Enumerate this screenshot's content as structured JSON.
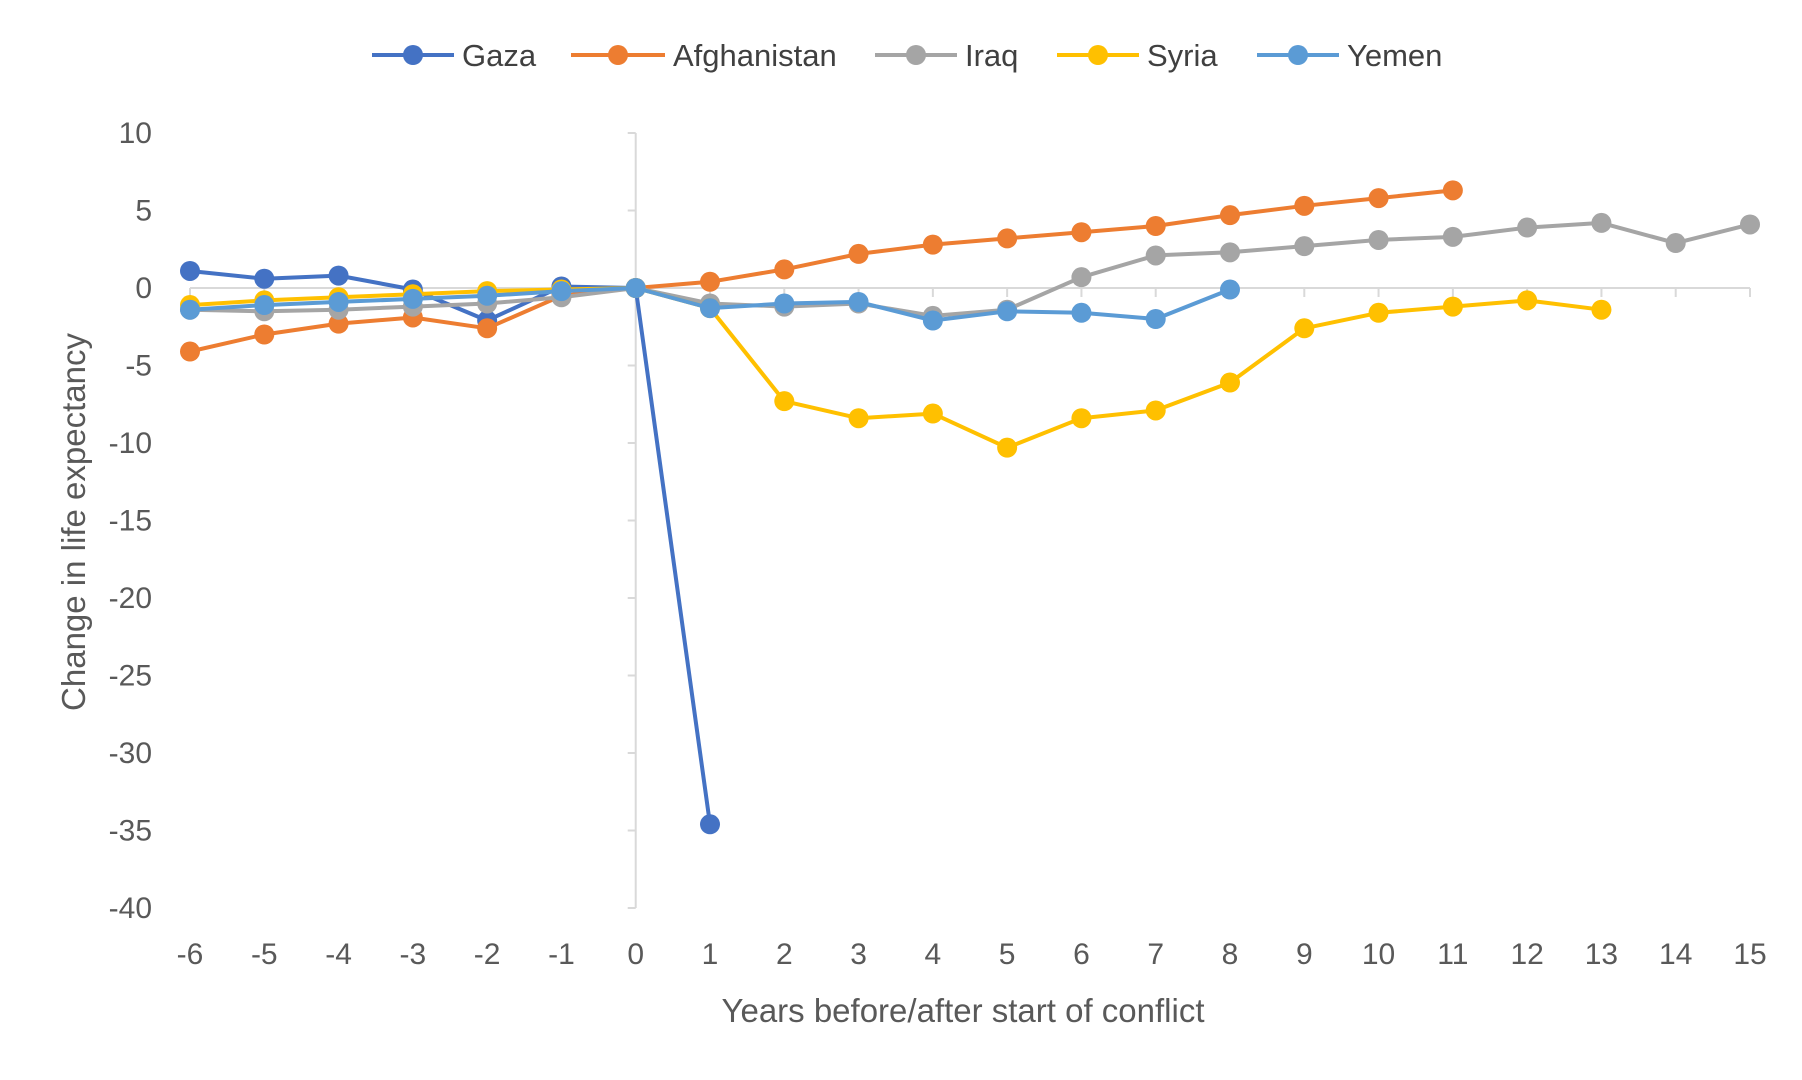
{
  "chart_data": {
    "type": "line",
    "title": "",
    "xlabel": "Years before/after start of conflict",
    "ylabel": "Change in life expectancy",
    "x": [
      -6,
      -5,
      -4,
      -3,
      -2,
      -1,
      0,
      1,
      2,
      3,
      4,
      5,
      6,
      7,
      8,
      9,
      10,
      11,
      12,
      13,
      14,
      15
    ],
    "xlim": [
      -6,
      15
    ],
    "ylim": [
      -40,
      10
    ],
    "yticks": [
      10,
      5,
      0,
      -5,
      -10,
      -15,
      -20,
      -25,
      -30,
      -35,
      -40
    ],
    "grid": false,
    "legend_position": "top",
    "series": [
      {
        "name": "Gaza",
        "color": "#4472C4",
        "points": [
          [
            -6,
            1.1
          ],
          [
            -5,
            0.6
          ],
          [
            -4,
            0.8
          ],
          [
            -3,
            -0.1
          ],
          [
            -2,
            -2.1
          ],
          [
            -1,
            0.1
          ],
          [
            0,
            0
          ],
          [
            1,
            -34.6
          ]
        ]
      },
      {
        "name": "Afghanistan",
        "color": "#ED7D31",
        "points": [
          [
            -6,
            -4.1
          ],
          [
            -5,
            -3.0
          ],
          [
            -4,
            -2.3
          ],
          [
            -3,
            -1.9
          ],
          [
            -2,
            -2.6
          ],
          [
            -1,
            -0.5
          ],
          [
            0,
            0
          ],
          [
            1,
            0.4
          ],
          [
            2,
            1.2
          ],
          [
            3,
            2.2
          ],
          [
            4,
            2.8
          ],
          [
            5,
            3.2
          ],
          [
            6,
            3.6
          ],
          [
            7,
            4.0
          ],
          [
            8,
            4.7
          ],
          [
            9,
            5.3
          ],
          [
            10,
            5.8
          ],
          [
            11,
            6.3
          ]
        ]
      },
      {
        "name": "Iraq",
        "color": "#A5A5A5",
        "points": [
          [
            -6,
            -1.4
          ],
          [
            -5,
            -1.5
          ],
          [
            -4,
            -1.4
          ],
          [
            -3,
            -1.2
          ],
          [
            -2,
            -1.0
          ],
          [
            -1,
            -0.6
          ],
          [
            0,
            0
          ],
          [
            1,
            -1.0
          ],
          [
            2,
            -1.2
          ],
          [
            3,
            -1.0
          ],
          [
            4,
            -1.8
          ],
          [
            5,
            -1.4
          ],
          [
            6,
            0.7
          ],
          [
            7,
            2.1
          ],
          [
            8,
            2.3
          ],
          [
            9,
            2.7
          ],
          [
            10,
            3.1
          ],
          [
            11,
            3.3
          ],
          [
            12,
            3.9
          ],
          [
            13,
            4.2
          ],
          [
            14,
            2.9
          ],
          [
            15,
            4.1
          ]
        ]
      },
      {
        "name": "Syria",
        "color": "#FFC000",
        "points": [
          [
            -6,
            -1.1
          ],
          [
            -5,
            -0.8
          ],
          [
            -4,
            -0.6
          ],
          [
            -3,
            -0.4
          ],
          [
            -2,
            -0.2
          ],
          [
            -1,
            -0.1
          ],
          [
            0,
            0
          ],
          [
            1,
            -1.3
          ],
          [
            2,
            -7.3
          ],
          [
            3,
            -8.4
          ],
          [
            4,
            -8.1
          ],
          [
            5,
            -10.3
          ],
          [
            6,
            -8.4
          ],
          [
            7,
            -7.9
          ],
          [
            8,
            -6.1
          ],
          [
            9,
            -2.6
          ],
          [
            10,
            -1.6
          ],
          [
            11,
            -1.2
          ],
          [
            12,
            -0.8
          ],
          [
            13,
            -1.4
          ]
        ]
      },
      {
        "name": "Yemen",
        "color": "#5B9BD5",
        "points": [
          [
            -6,
            -1.4
          ],
          [
            -5,
            -1.1
          ],
          [
            -4,
            -0.9
          ],
          [
            -3,
            -0.7
          ],
          [
            -2,
            -0.5
          ],
          [
            -1,
            -0.2
          ],
          [
            0,
            0
          ],
          [
            1,
            -1.3
          ],
          [
            2,
            -1.0
          ],
          [
            3,
            -0.9
          ],
          [
            4,
            -2.1
          ],
          [
            5,
            -1.5
          ],
          [
            6,
            -1.6
          ],
          [
            7,
            -2.0
          ],
          [
            8,
            -0.1
          ]
        ]
      }
    ]
  }
}
